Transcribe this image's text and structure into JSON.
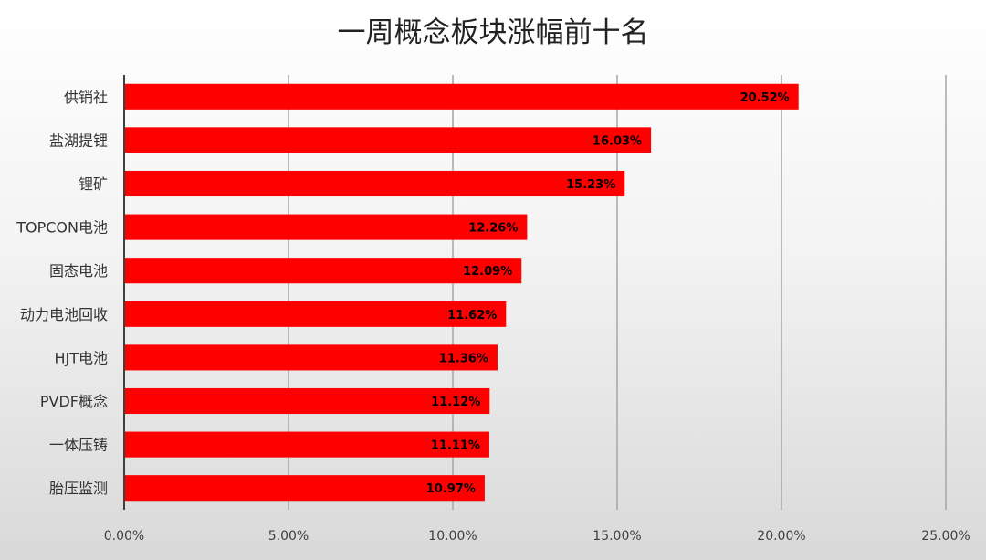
{
  "chart_data": {
    "type": "bar",
    "orientation": "horizontal",
    "title": "一周概念板块涨幅前十名",
    "categories": [
      "供销社",
      "盐湖提锂",
      "锂矿",
      "TOPCON电池",
      "固态电池",
      "动力电池回收",
      "HJT电池",
      "PVDF概念",
      "一体压铸",
      "胎压监测"
    ],
    "values": [
      20.52,
      16.03,
      15.23,
      12.26,
      12.09,
      11.62,
      11.36,
      11.12,
      11.11,
      10.97
    ],
    "data_labels": [
      "20.52%",
      "16.03%",
      "15.23%",
      "12.26%",
      "12.09%",
      "11.62%",
      "11.36%",
      "11.12%",
      "11.11%",
      "10.97%"
    ],
    "xlim": [
      0,
      25
    ],
    "x_ticks": [
      0,
      5,
      10,
      15,
      20,
      25
    ],
    "x_tick_labels": [
      "0.00%",
      "5.00%",
      "10.00%",
      "15.00%",
      "20.00%",
      "25.00%"
    ],
    "grid": "vertical",
    "legend": "none",
    "bar_color": "#ff0000"
  }
}
